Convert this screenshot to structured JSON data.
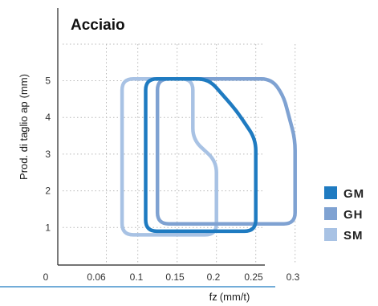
{
  "chart_data": {
    "type": "area",
    "title": "Acciaio",
    "ylabel": "Prod. di taglio ap",
    "ylabel_unit": "(mm)",
    "xlabel": "fz",
    "xlabel_unit": "(mm/t)",
    "x_ticks": [
      "0",
      "0.06",
      "0.1",
      "0.15",
      "0.2",
      "0.25",
      "0.3"
    ],
    "y_ticks": [
      "1",
      "2",
      "3",
      "4",
      "5"
    ],
    "xlim": [
      0.06,
      0.3
    ],
    "ylim": [
      0,
      6.5
    ],
    "grid": true,
    "legend_position": "right",
    "series": [
      {
        "name": "GM",
        "color": "#1f7bc1",
        "points": [
          [
            0.11,
            0.9
          ],
          [
            0.11,
            5.05
          ],
          [
            0.19,
            5.05
          ],
          [
            0.225,
            4.2
          ],
          [
            0.25,
            3.4
          ],
          [
            0.25,
            0.9
          ]
        ]
      },
      {
        "name": "GH",
        "color": "#7fa2d2",
        "points": [
          [
            0.125,
            1.1
          ],
          [
            0.125,
            5.05
          ],
          [
            0.27,
            5.05
          ],
          [
            0.285,
            4.6
          ],
          [
            0.3,
            3.4
          ],
          [
            0.3,
            1.1
          ]
        ]
      },
      {
        "name": "SM",
        "color": "#a8c2e4",
        "points": [
          [
            0.08,
            0.8
          ],
          [
            0.08,
            5.05
          ],
          [
            0.17,
            5.05
          ],
          [
            0.17,
            3.4
          ],
          [
            0.2,
            2.8
          ],
          [
            0.2,
            0.8
          ]
        ]
      }
    ]
  }
}
